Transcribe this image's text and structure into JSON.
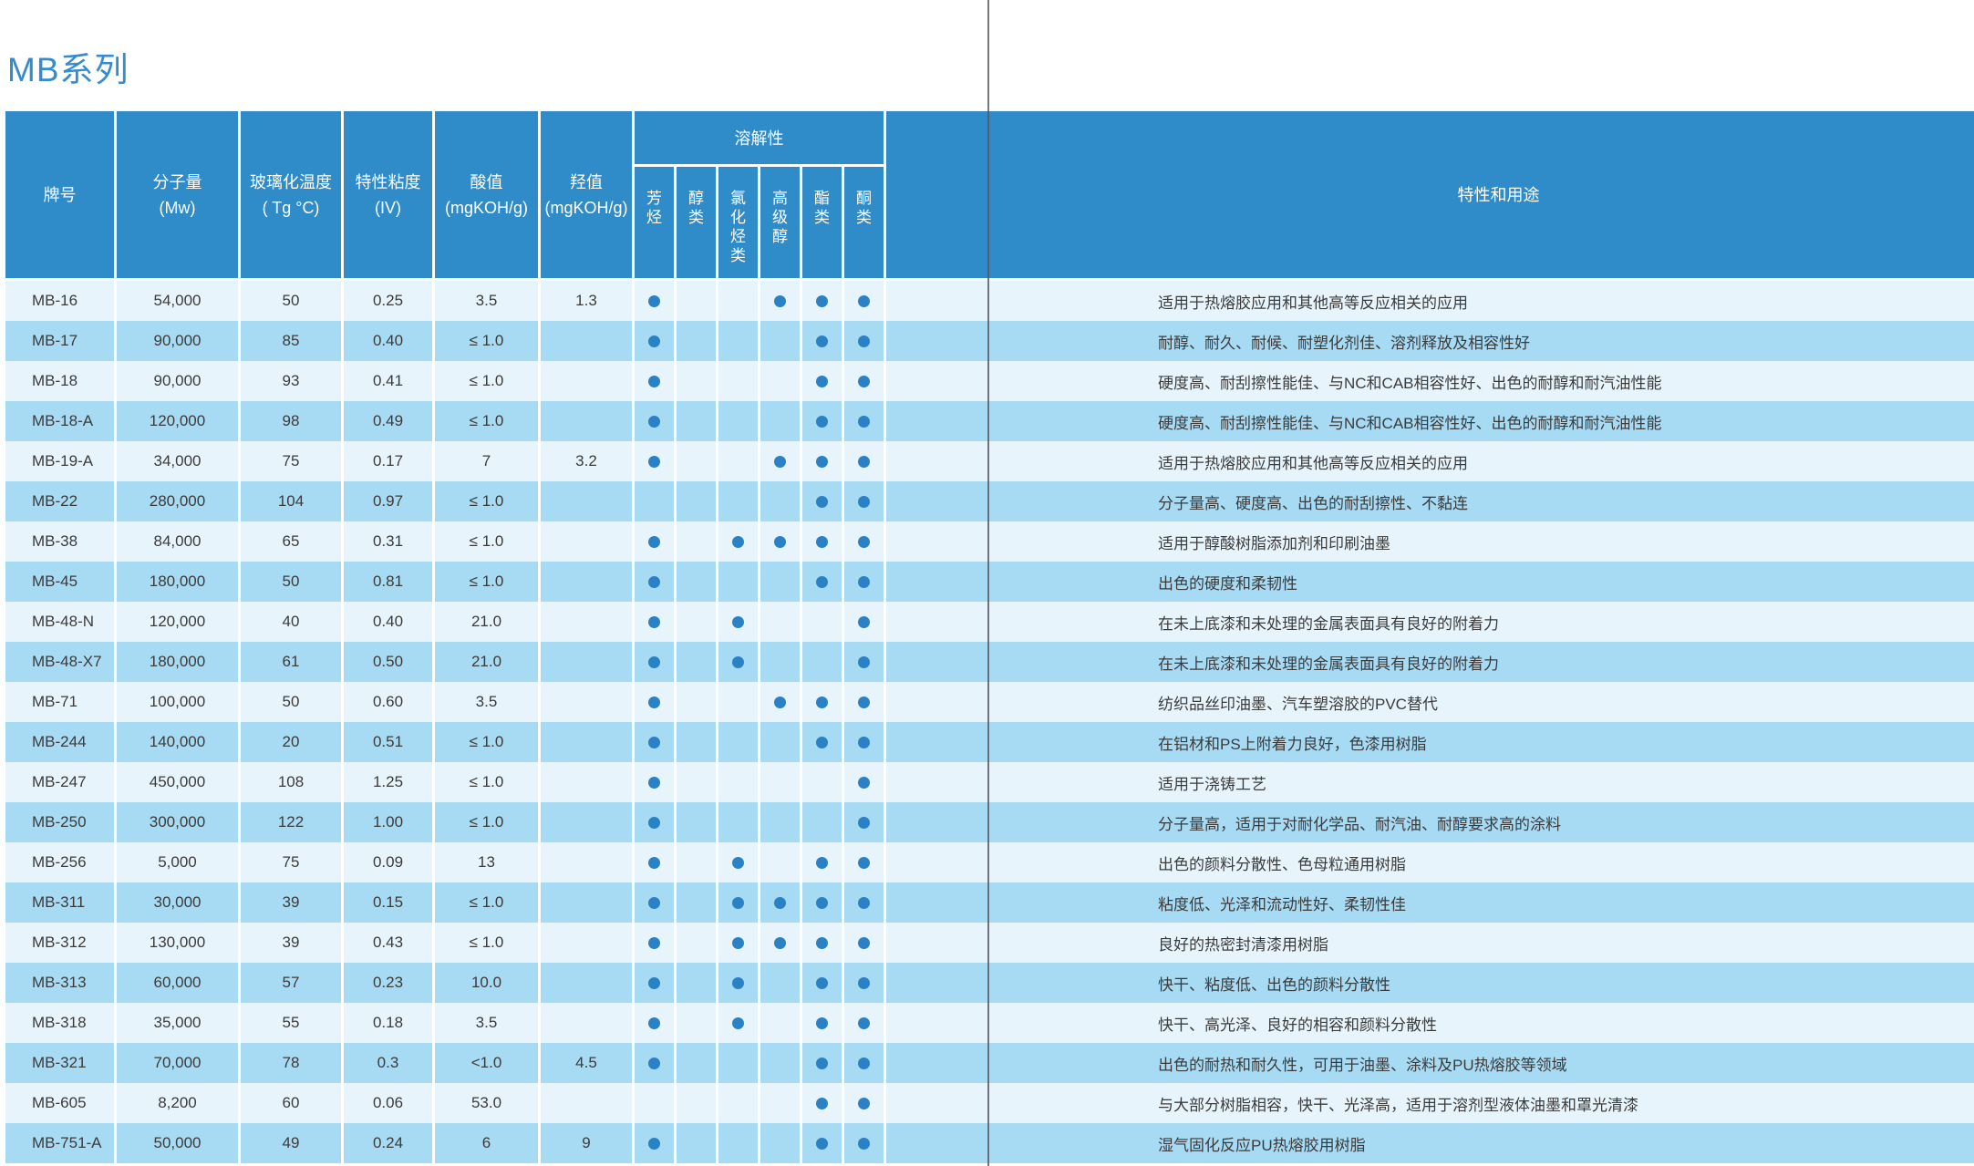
{
  "page": {
    "title": "MB系列"
  },
  "colors": {
    "header_blue": "#2F8CC9",
    "row_light": "#E7F4FC",
    "row_dark": "#A7DAF3",
    "dot_blue": "#2B81C5",
    "title_blue": "#348BCE",
    "fold_gray": "#54555A"
  },
  "table": {
    "columns": [
      {
        "label": "牌号",
        "sub": ""
      },
      {
        "label": "分子量",
        "sub": "(Mw)"
      },
      {
        "label": "玻璃化温度",
        "sub": "( Tg °C)"
      },
      {
        "label": "特性粘度",
        "sub": "(IV)"
      },
      {
        "label": "酸值",
        "sub": "(mgKOH/g)"
      },
      {
        "label": "羟值",
        "sub": "(mgKOH/g)"
      }
    ],
    "solubility_group": {
      "label": "溶解性",
      "columns": [
        "芳烃",
        "醇类",
        "氯化烃类",
        "高级醇",
        "酯类",
        "酮类"
      ]
    },
    "props_column": "特性和用途",
    "rows": [
      {
        "brand": "MB-16",
        "mw": "54,000",
        "tg": "50",
        "iv": "0.25",
        "acid": "3.5",
        "oh": "1.3",
        "solubility": [
          1,
          0,
          0,
          1,
          1,
          1
        ],
        "props": "适用于热熔胶应用和其他高等反应相关的应用"
      },
      {
        "brand": "MB-17",
        "mw": "90,000",
        "tg": "85",
        "iv": "0.40",
        "acid": "≤ 1.0",
        "oh": "",
        "solubility": [
          1,
          0,
          0,
          0,
          1,
          1
        ],
        "props": "耐醇、耐久、耐候、耐塑化剂佳、溶剂释放及相容性好"
      },
      {
        "brand": "MB-18",
        "mw": "90,000",
        "tg": "93",
        "iv": "0.41",
        "acid": "≤ 1.0",
        "oh": "",
        "solubility": [
          1,
          0,
          0,
          0,
          1,
          1
        ],
        "props": "硬度高、耐刮擦性能佳、与NC和CAB相容性好、出色的耐醇和耐汽油性能"
      },
      {
        "brand": "MB-18-A",
        "mw": "120,000",
        "tg": "98",
        "iv": "0.49",
        "acid": "≤ 1.0",
        "oh": "",
        "solubility": [
          1,
          0,
          0,
          0,
          1,
          1
        ],
        "props": "硬度高、耐刮擦性能佳、与NC和CAB相容性好、出色的耐醇和耐汽油性能"
      },
      {
        "brand": "MB-19-A",
        "mw": "34,000",
        "tg": "75",
        "iv": "0.17",
        "acid": "7",
        "oh": "3.2",
        "solubility": [
          1,
          0,
          0,
          1,
          1,
          1
        ],
        "props": "适用于热熔胶应用和其他高等反应相关的应用"
      },
      {
        "brand": "MB-22",
        "mw": "280,000",
        "tg": "104",
        "iv": "0.97",
        "acid": "≤ 1.0",
        "oh": "",
        "solubility": [
          0,
          0,
          0,
          0,
          1,
          1
        ],
        "props": "分子量高、硬度高、出色的耐刮擦性、不黏连"
      },
      {
        "brand": "MB-38",
        "mw": "84,000",
        "tg": "65",
        "iv": "0.31",
        "acid": "≤ 1.0",
        "oh": "",
        "solubility": [
          1,
          0,
          1,
          1,
          1,
          1
        ],
        "props": "适用于醇酸树脂添加剂和印刷油墨"
      },
      {
        "brand": "MB-45",
        "mw": "180,000",
        "tg": "50",
        "iv": "0.81",
        "acid": "≤ 1.0",
        "oh": "",
        "solubility": [
          1,
          0,
          0,
          0,
          1,
          1
        ],
        "props": "出色的硬度和柔韧性"
      },
      {
        "brand": "MB-48-N",
        "mw": "120,000",
        "tg": "40",
        "iv": "0.40",
        "acid": "21.0",
        "oh": "",
        "solubility": [
          1,
          0,
          1,
          0,
          0,
          1
        ],
        "props": "在未上底漆和未处理的金属表面具有良好的附着力"
      },
      {
        "brand": "MB-48-X7",
        "mw": "180,000",
        "tg": "61",
        "iv": "0.50",
        "acid": "21.0",
        "oh": "",
        "solubility": [
          1,
          0,
          1,
          0,
          0,
          1
        ],
        "props": "在未上底漆和未处理的金属表面具有良好的附着力"
      },
      {
        "brand": "MB-71",
        "mw": "100,000",
        "tg": "50",
        "iv": "0.60",
        "acid": "3.5",
        "oh": "",
        "solubility": [
          1,
          0,
          0,
          1,
          1,
          1
        ],
        "props": "纺织品丝印油墨、汽车塑溶胶的PVC替代"
      },
      {
        "brand": "MB-244",
        "mw": "140,000",
        "tg": "20",
        "iv": "0.51",
        "acid": "≤ 1.0",
        "oh": "",
        "solubility": [
          1,
          0,
          0,
          0,
          1,
          1
        ],
        "props": "在铝材和PS上附着力良好，色漆用树脂"
      },
      {
        "brand": "MB-247",
        "mw": "450,000",
        "tg": "108",
        "iv": "1.25",
        "acid": "≤ 1.0",
        "oh": "",
        "solubility": [
          1,
          0,
          0,
          0,
          0,
          1
        ],
        "props": "适用于浇铸工艺"
      },
      {
        "brand": "MB-250",
        "mw": "300,000",
        "tg": "122",
        "iv": "1.00",
        "acid": "≤ 1.0",
        "oh": "",
        "solubility": [
          1,
          0,
          0,
          0,
          0,
          1
        ],
        "props": "分子量高，适用于对耐化学品、耐汽油、耐醇要求高的涂料"
      },
      {
        "brand": "MB-256",
        "mw": "5,000",
        "tg": "75",
        "iv": "0.09",
        "acid": "13",
        "oh": "",
        "solubility": [
          1,
          0,
          1,
          0,
          1,
          1
        ],
        "props": "出色的颜料分散性、色母粒通用树脂"
      },
      {
        "brand": "MB-311",
        "mw": "30,000",
        "tg": "39",
        "iv": "0.15",
        "acid": "≤ 1.0",
        "oh": "",
        "solubility": [
          1,
          0,
          1,
          1,
          1,
          1
        ],
        "props": "粘度低、光泽和流动性好、柔韧性佳"
      },
      {
        "brand": "MB-312",
        "mw": "130,000",
        "tg": "39",
        "iv": "0.43",
        "acid": "≤ 1.0",
        "oh": "",
        "solubility": [
          1,
          0,
          1,
          1,
          1,
          1
        ],
        "props": "良好的热密封清漆用树脂"
      },
      {
        "brand": "MB-313",
        "mw": "60,000",
        "tg": "57",
        "iv": "0.23",
        "acid": "10.0",
        "oh": "",
        "solubility": [
          1,
          0,
          1,
          0,
          1,
          1
        ],
        "props": "快干、粘度低、出色的颜料分散性"
      },
      {
        "brand": "MB-318",
        "mw": "35,000",
        "tg": "55",
        "iv": "0.18",
        "acid": "3.5",
        "oh": "",
        "solubility": [
          1,
          0,
          1,
          0,
          1,
          1
        ],
        "props": "快干、高光泽、良好的相容和颜料分散性"
      },
      {
        "brand": "MB-321",
        "mw": "70,000",
        "tg": "78",
        "iv": "0.3",
        "acid": "<1.0",
        "oh": "4.5",
        "solubility": [
          1,
          0,
          0,
          0,
          1,
          1
        ],
        "props": "出色的耐热和耐久性，可用于油墨、涂料及PU热熔胶等领域"
      },
      {
        "brand": "MB-605",
        "mw": "8,200",
        "tg": "60",
        "iv": "0.06",
        "acid": "53.0",
        "oh": "",
        "solubility": [
          0,
          0,
          0,
          0,
          1,
          1
        ],
        "props": "与大部分树脂相容，快干、光泽高，适用于溶剂型液体油墨和罩光清漆"
      },
      {
        "brand": "MB-751-A",
        "mw": "50,000",
        "tg": "49",
        "iv": "0.24",
        "acid": "6",
        "oh": "9",
        "solubility": [
          1,
          0,
          0,
          0,
          1,
          1
        ],
        "props": "湿气固化反应PU热熔胶用树脂"
      }
    ]
  }
}
